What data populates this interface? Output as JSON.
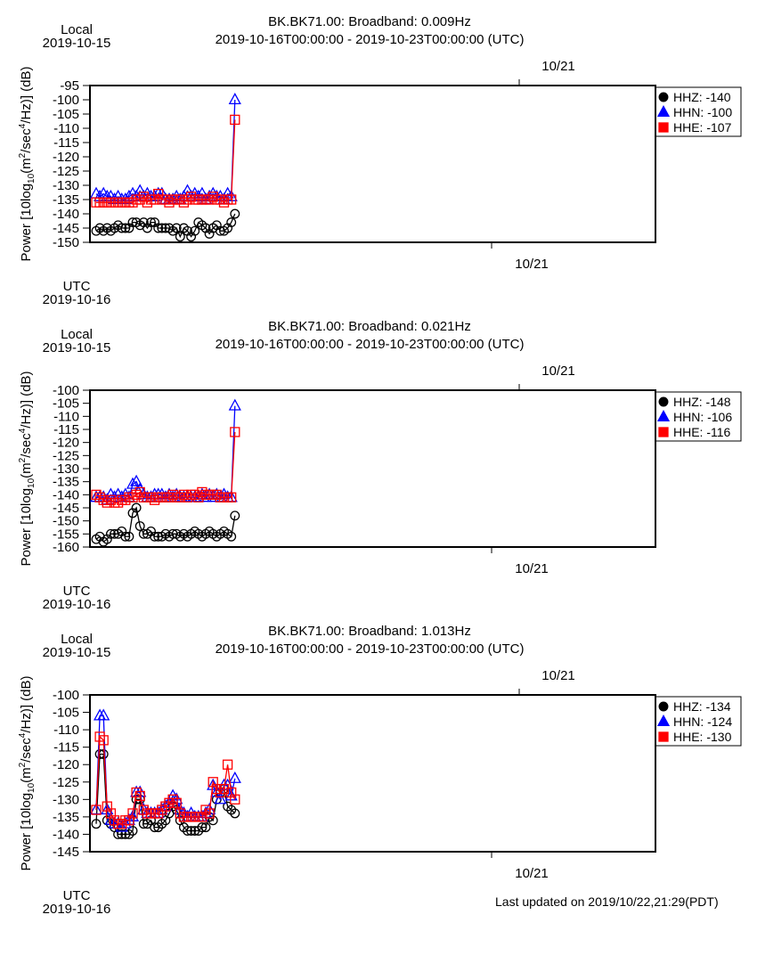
{
  "footer": {
    "last_updated": "Last updated on 2019/10/22,21:29(PDT)"
  },
  "colors": {
    "HHZ": "#000000",
    "HHN": "#0000ff",
    "HHE": "#ff0000"
  },
  "chart_data": [
    {
      "type": "line",
      "title": "BK.BK71.00: Broadband: 0.009Hz",
      "subtitle": "2019-10-16T00:00:00 - 2019-10-23T00:00:00 (UTC)",
      "local_label": "Local",
      "local_date": "2019-10-15",
      "utc_label": "UTC",
      "utc_date": "2019-10-16",
      "top_tick_label": "10/21",
      "bottom_tick_label": "10/21",
      "ylabel": "Power [10log10(m2/sec4/Hz)] (dB)",
      "ylim": [
        -150,
        -95
      ],
      "yticks": [
        -95,
        -100,
        -105,
        -110,
        -115,
        -120,
        -125,
        -130,
        -135,
        -140,
        -145,
        -150
      ],
      "grid": false,
      "legend_position": "right",
      "series": [
        {
          "name": "HHZ",
          "marker": "circle",
          "latest": "-140",
          "values": [
            -146,
            -145,
            -146,
            -145,
            -146,
            -145,
            -144,
            -145,
            -145,
            -145,
            -143,
            -143,
            -144,
            -143,
            -145,
            -143,
            -143,
            -145,
            -145,
            -145,
            -145,
            -146,
            -145,
            -148,
            -145,
            -146,
            -148,
            -146,
            -143,
            -144,
            -145,
            -147,
            -145,
            -144,
            -146,
            -146,
            -145,
            -143,
            -140
          ]
        },
        {
          "name": "HHN",
          "marker": "triangle",
          "latest": "-100",
          "values": [
            -133,
            -134,
            -133,
            -134,
            -134,
            -135,
            -134,
            -135,
            -135,
            -134,
            -133,
            -134,
            -132,
            -134,
            -133,
            -134,
            -134,
            -133,
            -133,
            -135,
            -135,
            -135,
            -134,
            -135,
            -134,
            -132,
            -134,
            -133,
            -134,
            -133,
            -135,
            -134,
            -133,
            -134,
            -134,
            -135,
            -133,
            -134,
            -100
          ]
        },
        {
          "name": "HHE",
          "marker": "square",
          "latest": "-107",
          "values": [
            -136,
            -136,
            -136,
            -136,
            -136,
            -136,
            -136,
            -136,
            -136,
            -136,
            -136,
            -135,
            -135,
            -134,
            -136,
            -135,
            -135,
            -133,
            -135,
            -135,
            -136,
            -135,
            -135,
            -135,
            -136,
            -135,
            -134,
            -135,
            -135,
            -135,
            -135,
            -135,
            -134,
            -135,
            -135,
            -136,
            -135,
            -135,
            -107
          ]
        }
      ]
    },
    {
      "type": "line",
      "title": "BK.BK71.00: Broadband: 0.021Hz",
      "subtitle": "2019-10-16T00:00:00 - 2019-10-23T00:00:00 (UTC)",
      "local_label": "Local",
      "local_date": "2019-10-15",
      "utc_label": "UTC",
      "utc_date": "2019-10-16",
      "top_tick_label": "10/21",
      "bottom_tick_label": "10/21",
      "ylabel": "Power [10log10(m2/sec4/Hz)] (dB)",
      "ylim": [
        -160,
        -100
      ],
      "yticks": [
        -100,
        -105,
        -110,
        -115,
        -120,
        -125,
        -130,
        -135,
        -140,
        -145,
        -150,
        -155,
        -160
      ],
      "grid": false,
      "legend_position": "right",
      "series": [
        {
          "name": "HHZ",
          "marker": "circle",
          "latest": "-148",
          "values": [
            -157,
            -156,
            -158,
            -157,
            -155,
            -155,
            -155,
            -154,
            -156,
            -156,
            -147,
            -145,
            -152,
            -155,
            -155,
            -154,
            -156,
            -156,
            -156,
            -155,
            -156,
            -155,
            -155,
            -156,
            -155,
            -156,
            -155,
            -154,
            -155,
            -156,
            -155,
            -154,
            -155,
            -156,
            -155,
            -154,
            -155,
            -156,
            -148
          ]
        },
        {
          "name": "HHN",
          "marker": "triangle",
          "latest": "-106",
          "values": [
            -141,
            -141,
            -141,
            -142,
            -140,
            -141,
            -140,
            -141,
            -140,
            -141,
            -136,
            -135,
            -138,
            -140,
            -141,
            -141,
            -140,
            -140,
            -140,
            -141,
            -140,
            -141,
            -140,
            -141,
            -141,
            -141,
            -141,
            -141,
            -141,
            -140,
            -141,
            -140,
            -141,
            -140,
            -141,
            -140,
            -141,
            -141,
            -106
          ]
        },
        {
          "name": "HHE",
          "marker": "square",
          "latest": "-116",
          "values": [
            -140,
            -141,
            -142,
            -143,
            -142,
            -143,
            -143,
            -142,
            -142,
            -141,
            -141,
            -140,
            -139,
            -141,
            -141,
            -141,
            -142,
            -141,
            -141,
            -141,
            -141,
            -140,
            -141,
            -141,
            -140,
            -141,
            -140,
            -140,
            -141,
            -139,
            -140,
            -140,
            -140,
            -140,
            -141,
            -141,
            -141,
            -141,
            -116
          ]
        }
      ]
    },
    {
      "type": "line",
      "title": "BK.BK71.00: Broadband: 1.013Hz",
      "subtitle": "2019-10-16T00:00:00 - 2019-10-23T00:00:00 (UTC)",
      "local_label": "Local",
      "local_date": "2019-10-15",
      "utc_label": "UTC",
      "utc_date": "2019-10-16",
      "top_tick_label": "10/21",
      "bottom_tick_label": "10/21",
      "ylabel": "Power [10log10(m2/sec4/Hz)] (dB)",
      "ylim": [
        -145,
        -100
      ],
      "yticks": [
        -100,
        -105,
        -110,
        -115,
        -120,
        -125,
        -130,
        -135,
        -140,
        -145
      ],
      "grid": false,
      "legend_position": "right",
      "series": [
        {
          "name": "HHZ",
          "marker": "circle",
          "latest": "-134",
          "values": [
            -137,
            -117,
            -117,
            -136,
            -137,
            -138,
            -140,
            -140,
            -140,
            -140,
            -139,
            -130,
            -130,
            -137,
            -137,
            -136,
            -138,
            -138,
            -137,
            -136,
            -134,
            -132,
            -133,
            -136,
            -138,
            -139,
            -139,
            -139,
            -139,
            -138,
            -138,
            -135,
            -136,
            -130,
            -128,
            -127,
            -132,
            -133,
            -134
          ]
        },
        {
          "name": "HHN",
          "marker": "triangle",
          "latest": "-124",
          "values": [
            -133,
            -106,
            -106,
            -133,
            -136,
            -137,
            -137,
            -138,
            -137,
            -136,
            -135,
            -128,
            -128,
            -133,
            -134,
            -134,
            -134,
            -134,
            -133,
            -132,
            -131,
            -129,
            -130,
            -133,
            -134,
            -135,
            -134,
            -135,
            -135,
            -135,
            -134,
            -133,
            -126,
            -128,
            -130,
            -126,
            -126,
            -129,
            -124
          ]
        },
        {
          "name": "HHE",
          "marker": "square",
          "latest": "-130",
          "values": [
            -133,
            -112,
            -113,
            -132,
            -134,
            -136,
            -137,
            -137,
            -136,
            -136,
            -134,
            -128,
            -129,
            -133,
            -134,
            -134,
            -134,
            -134,
            -133,
            -132,
            -131,
            -130,
            -131,
            -134,
            -135,
            -135,
            -135,
            -135,
            -135,
            -135,
            -133,
            -134,
            -125,
            -127,
            -128,
            -127,
            -120,
            -128,
            -130
          ]
        }
      ]
    }
  ]
}
